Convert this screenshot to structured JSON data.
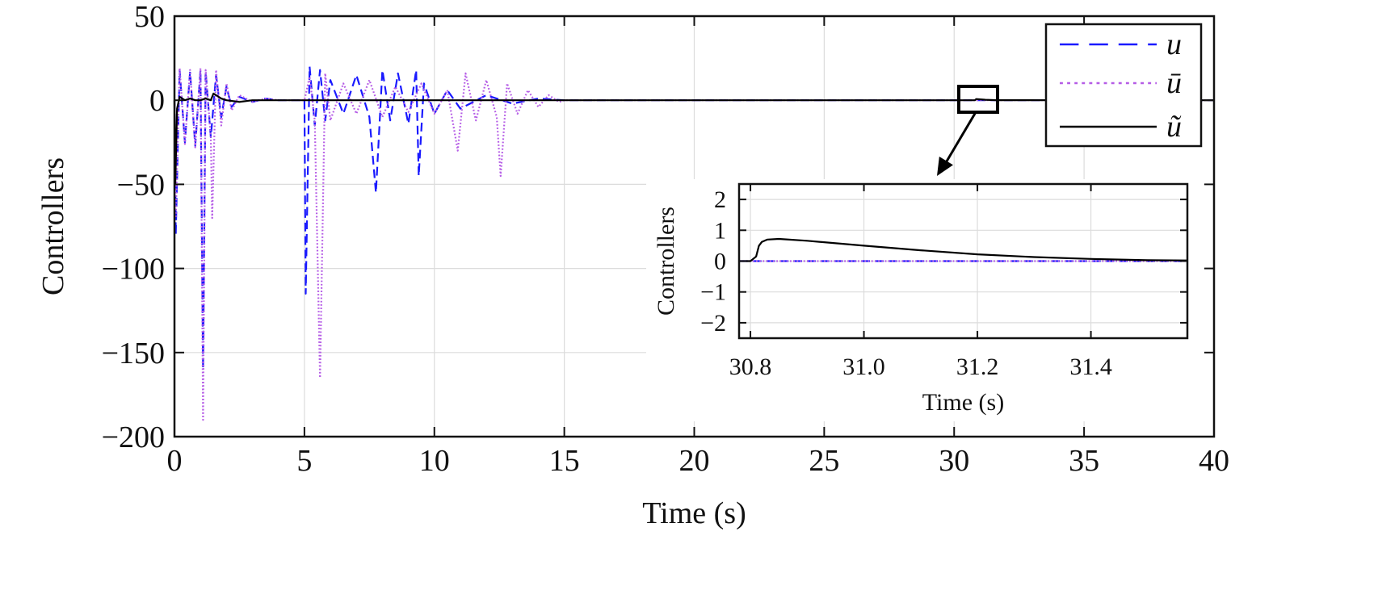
{
  "chart_data": [
    {
      "type": "line",
      "role": "main",
      "xlabel": "Time (s)",
      "ylabel": "Controllers",
      "xlim": [
        0,
        40
      ],
      "ylim": [
        -200,
        50
      ],
      "xticks": [
        0,
        5,
        10,
        15,
        20,
        25,
        30,
        35,
        40
      ],
      "xtick_labels": [
        "0",
        "5",
        "10",
        "15",
        "20",
        "25",
        "30",
        "35",
        "40"
      ],
      "yticks": [
        50,
        0,
        -50,
        -100,
        -150,
        -200
      ],
      "ytick_labels": [
        "50",
        "0",
        "−50",
        "−100",
        "−150",
        "−200"
      ],
      "grid": true,
      "legend_position": "top-right",
      "series": [
        {
          "name": "u",
          "legend_label": "u",
          "color": "#1a1aff",
          "style": "dashed",
          "x": [
            0,
            0.05,
            0.2,
            0.4,
            0.6,
            0.8,
            1.0,
            1.1,
            1.2,
            1.4,
            1.6,
            1.8,
            2.0,
            2.2,
            2.5,
            3.0,
            3.5,
            4.0,
            4.5,
            5.0,
            5.05,
            5.2,
            5.4,
            5.6,
            5.8,
            6.0,
            6.5,
            7.0,
            7.5,
            7.75,
            8.0,
            8.3,
            8.6,
            9.0,
            9.3,
            9.4,
            9.6,
            10.0,
            10.5,
            11.0,
            12.0,
            13.0,
            14.0,
            15.0,
            20.0,
            25.0,
            30.0,
            35.0,
            40.0
          ],
          "y": [
            0,
            -80,
            18,
            -25,
            17,
            -27,
            18,
            -160,
            17,
            -22,
            15,
            -10,
            8,
            -4,
            2,
            -1,
            1,
            0,
            0,
            0,
            -115,
            20,
            -15,
            18,
            -12,
            12,
            -8,
            15,
            -10,
            -55,
            18,
            -12,
            16,
            -14,
            18,
            -45,
            10,
            -8,
            6,
            -5,
            3,
            -2,
            1,
            0,
            0,
            0,
            0,
            0,
            0
          ]
        },
        {
          "name": "ū",
          "legend_label": "ū",
          "color": "#b55ce6",
          "style": "dotted",
          "x": [
            0,
            0.05,
            0.2,
            0.4,
            0.6,
            0.8,
            1.0,
            1.1,
            1.2,
            1.4,
            1.45,
            1.6,
            1.8,
            2.0,
            2.2,
            2.5,
            3.0,
            3.5,
            4.0,
            4.5,
            5.0,
            5.2,
            5.4,
            5.6,
            5.8,
            6.0,
            6.5,
            7.0,
            7.5,
            8.0,
            8.5,
            9.0,
            9.5,
            10.0,
            10.5,
            10.9,
            11.2,
            11.6,
            12.0,
            12.4,
            12.55,
            12.8,
            13.2,
            13.6,
            14.0,
            14.4,
            14.8,
            15.0,
            20.0,
            25.0,
            30.0,
            35.0,
            40.0
          ],
          "y": [
            0,
            -70,
            19,
            -26,
            18,
            -28,
            19,
            -190,
            18,
            -22,
            -70,
            18,
            -15,
            10,
            -6,
            3,
            -1,
            1,
            0,
            0,
            0,
            14,
            -12,
            -165,
            16,
            -12,
            10,
            -8,
            12,
            -10,
            8,
            -7,
            10,
            -8,
            6,
            -30,
            16,
            -12,
            12,
            -10,
            -45,
            10,
            -8,
            6,
            -4,
            3,
            -1,
            0,
            0,
            0,
            0,
            0,
            0
          ]
        },
        {
          "name": "ũ",
          "legend_label": "ũ",
          "color": "#000000",
          "style": "solid",
          "x": [
            0,
            0.03,
            0.1,
            0.2,
            0.4,
            0.6,
            0.8,
            1.0,
            1.2,
            1.4,
            1.5,
            1.6,
            1.8,
            2.0,
            2.5,
            3.0,
            3.5,
            4.0,
            5.0,
            6.0,
            8.0,
            10.0,
            12.0,
            15.0,
            20.0,
            25.0,
            30.0,
            30.8,
            30.85,
            31.2,
            31.6,
            35.0,
            40.0
          ],
          "y": [
            0,
            -50,
            -5,
            2,
            0,
            1,
            0,
            0,
            1,
            0,
            4,
            3,
            1,
            0,
            -1,
            0,
            0,
            0,
            0,
            0,
            0,
            0,
            0,
            0,
            0,
            0,
            0,
            0,
            0.7,
            0.3,
            0.05,
            0,
            0
          ]
        }
      ]
    },
    {
      "type": "line",
      "role": "inset",
      "xlabel": "Time (s)",
      "ylabel": "Controllers",
      "xlim": [
        30.78,
        31.57
      ],
      "ylim": [
        -2.5,
        2.5
      ],
      "xticks": [
        30.8,
        31.0,
        31.2,
        31.4
      ],
      "xtick_labels": [
        "30.8",
        "31.0",
        "31.2",
        "31.4"
      ],
      "yticks": [
        2,
        1,
        0,
        -1,
        -2
      ],
      "ytick_labels": [
        "2",
        "1",
        "0",
        "−1",
        "−2"
      ],
      "grid": true,
      "series": [
        {
          "name": "u",
          "color": "#1a1aff",
          "style": "dashed",
          "x": [
            30.78,
            31.57
          ],
          "y": [
            0,
            0
          ]
        },
        {
          "name": "ū",
          "color": "#b55ce6",
          "style": "dotted",
          "x": [
            30.78,
            31.57
          ],
          "y": [
            0,
            0
          ]
        },
        {
          "name": "ũ",
          "color": "#000000",
          "style": "solid",
          "x": [
            30.78,
            30.8,
            30.81,
            30.815,
            30.82,
            30.83,
            30.85,
            30.9,
            31.0,
            31.1,
            31.2,
            31.3,
            31.4,
            31.5,
            31.57
          ],
          "y": [
            0,
            0,
            0.15,
            0.5,
            0.62,
            0.7,
            0.72,
            0.66,
            0.5,
            0.35,
            0.22,
            0.13,
            0.07,
            0.03,
            0.02
          ]
        }
      ]
    }
  ]
}
